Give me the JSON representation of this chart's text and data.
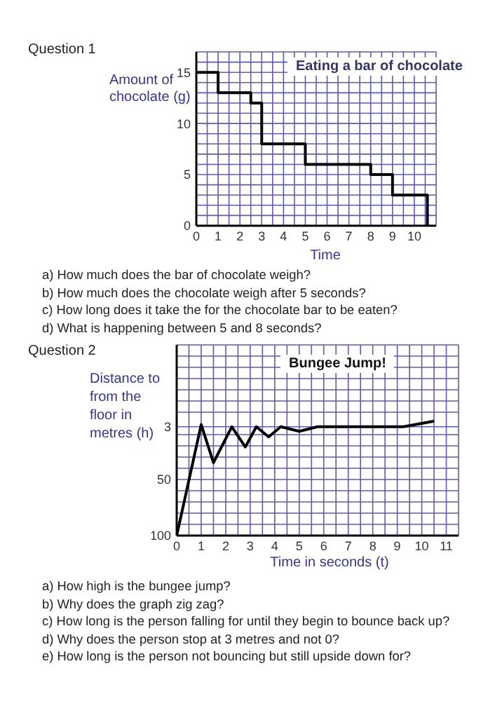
{
  "chart_data": [
    {
      "type": "step",
      "title": "Eating a bar of chocolate",
      "xlabel": "Time",
      "ylabel": "Amount of chocolate (g)",
      "annotations": [
        "Question 1",
        "a) How much does the bar of chocolate weigh?",
        "b) How much does the chocolate weigh after 5 seconds?",
        "c) How long does it take the for the chocolate bar to be eaten?",
        "d) What is happening between 5 and 8 seconds?"
      ],
      "series": [
        {
          "color": "#000000",
          "x": [
            0,
            1,
            2.5,
            3,
            5,
            8,
            9,
            10.6
          ],
          "values": [
            15,
            13,
            12,
            8,
            6,
            5,
            3,
            0
          ]
        }
      ],
      "xlim": [
        0,
        11
      ],
      "ylim": [
        0,
        17
      ],
      "xticks": [
        0,
        {
          "value": 0.5,
          "label": null
        },
        1,
        {
          "value": 1.5,
          "label": null
        },
        2,
        {
          "value": 2.5,
          "label": null
        },
        3,
        {
          "value": 3.5,
          "label": null
        },
        4,
        {
          "value": 4.5,
          "label": null
        },
        5,
        {
          "value": 5.5,
          "label": null
        },
        6,
        {
          "value": 6.5,
          "label": null
        },
        7,
        {
          "value": 7.5,
          "label": null
        },
        8,
        {
          "value": 8.5,
          "label": null
        },
        9,
        {
          "value": 9.5,
          "label": null
        },
        10,
        {
          "value": 10.5,
          "label": null
        },
        {
          "value": 11,
          "label": null
        }
      ],
      "yticks": [
        0,
        {
          "value": 1,
          "label": null
        },
        {
          "value": 2,
          "label": null
        },
        {
          "value": 3,
          "label": null
        },
        {
          "value": 4,
          "label": null
        },
        5,
        {
          "value": 6,
          "label": null
        },
        {
          "value": 7,
          "label": null
        },
        {
          "value": 8,
          "label": null
        },
        {
          "value": 9,
          "label": null
        },
        10,
        {
          "value": 11,
          "label": null
        },
        {
          "value": 12,
          "label": null
        },
        {
          "value": 13,
          "label": null
        },
        {
          "value": 14,
          "label": null
        },
        15,
        {
          "value": 16,
          "label": null
        },
        {
          "value": 17,
          "label": null
        }
      ],
      "grid": true,
      "marker": "none",
      "legend": false
    },
    {
      "type": "line",
      "title": "Bungee Jump!",
      "xlabel": "Time in seconds (t)",
      "ylabel": "Distance to from the floor in metres (h)",
      "annotations": [
        "Question 2",
        "a) How high is the bungee jump?",
        "b) Why does the graph zig zag?",
        "c) How long is the person falling for until they begin to bounce back up?",
        "d) Why does the person stop at 3 metres and not 0?",
        "e) How long is the person not bouncing but still upside down for?"
      ],
      "series": [
        {
          "color": "#000000",
          "x": [
            0,
            1,
            1.5,
            2.25,
            2.8,
            3.25,
            3.75,
            4.25,
            5,
            5.75,
            9.25,
            10.5
          ],
          "values": [
            100,
            1,
            35,
            3,
            21,
            3,
            12,
            3,
            7,
            3,
            3,
            -2
          ]
        }
      ],
      "xlim": [
        0,
        11.5
      ],
      "ylim": [
        100,
        -70
      ],
      "xticks": [
        0,
        {
          "value": 0.5,
          "label": null
        },
        1,
        {
          "value": 1.5,
          "label": null
        },
        2,
        {
          "value": 2.5,
          "label": null
        },
        3,
        {
          "value": 3.5,
          "label": null
        },
        4,
        {
          "value": 4.5,
          "label": null
        },
        5,
        {
          "value": 5.5,
          "label": null
        },
        6,
        {
          "value": 6.5,
          "label": null
        },
        7,
        {
          "value": 7.5,
          "label": null
        },
        8,
        {
          "value": 8.5,
          "label": null
        },
        9,
        {
          "value": 9.5,
          "label": null
        },
        10,
        {
          "value": 10.5,
          "label": null
        },
        11,
        {
          "value": 11.5,
          "label": null
        }
      ],
      "yticks": [
        100,
        {
          "value": 90,
          "label": null
        },
        {
          "value": 80,
          "label": null
        },
        {
          "value": 70,
          "label": null
        },
        {
          "value": 60,
          "label": null
        },
        50,
        {
          "value": 40,
          "label": null
        },
        {
          "value": 30,
          "label": null
        },
        {
          "value": 20,
          "label": null
        },
        {
          "value": 10,
          "label": null
        },
        3,
        {
          "value": -10,
          "label": null
        },
        {
          "value": -20,
          "label": null
        },
        {
          "value": -30,
          "label": null
        },
        {
          "value": -40,
          "label": null
        },
        {
          "value": -50,
          "label": null
        },
        {
          "value": -60,
          "label": null
        },
        {
          "value": -70,
          "label": null
        }
      ],
      "grid": true,
      "marker": "none",
      "legend": false
    }
  ]
}
